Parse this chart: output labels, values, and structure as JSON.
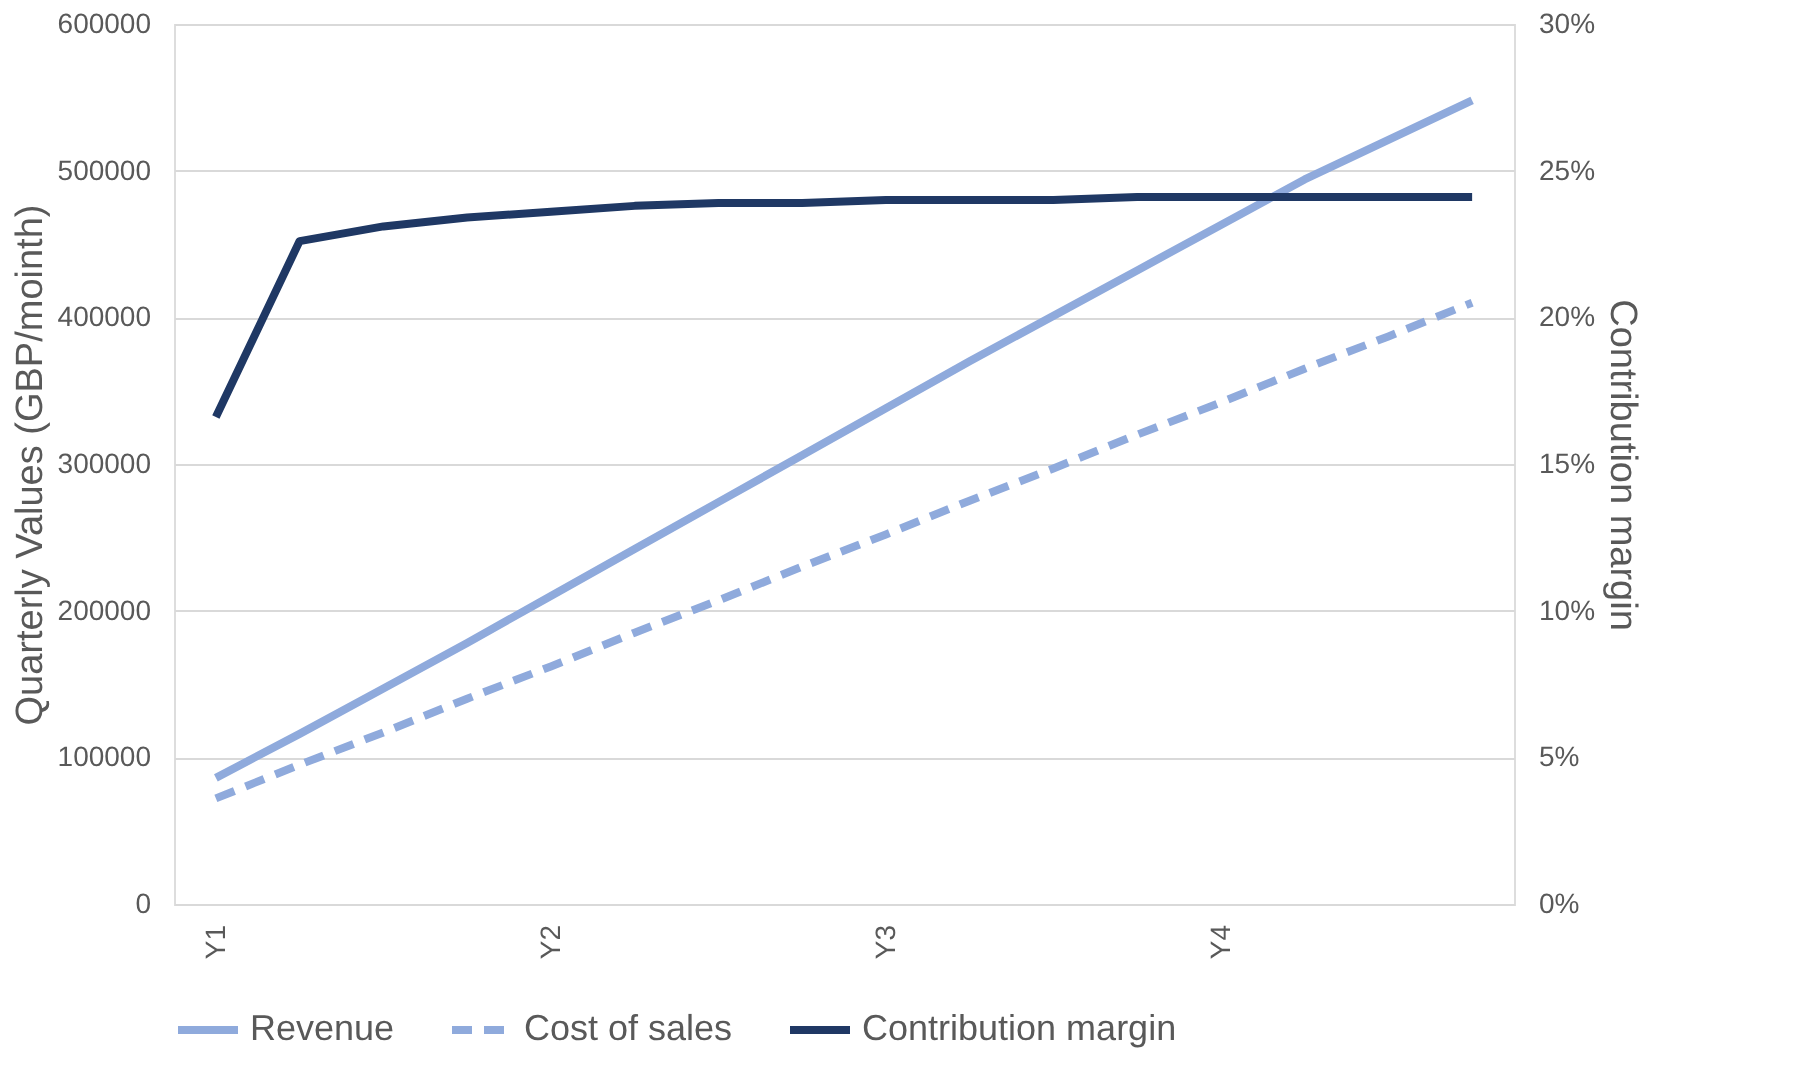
{
  "chart_data": {
    "type": "line",
    "categories": [
      "Y1",
      null,
      null,
      null,
      "Y2",
      null,
      null,
      null,
      "Y3",
      null,
      null,
      null,
      "Y4",
      null,
      null,
      null
    ],
    "series": [
      {
        "name": "Revenue",
        "color": "#8faadc",
        "line_style": "solid",
        "values": [
          86000,
          116000,
          147000,
          178000,
          210000,
          242000,
          274000,
          306000,
          338000,
          370000,
          401000,
          432000,
          463000,
          494000,
          521000,
          548000
        ]
      },
      {
        "name": "Cost of sales",
        "color": "#8faadc",
        "line_style": "dashed",
        "values": [
          72000,
          95000,
          117000,
          140000,
          162000,
          185000,
          207000,
          230000,
          252000,
          275000,
          297000,
          320000,
          342000,
          365000,
          387000,
          410000
        ]
      },
      {
        "name": "Contribution margin",
        "color": "#1f3864",
        "line_style": "solid",
        "axis": "y2",
        "values": [
          16.6,
          22.6,
          23.1,
          23.4,
          23.6,
          23.8,
          23.9,
          23.9,
          24.0,
          24.0,
          24.0,
          24.1,
          24.1,
          24.1,
          24.1,
          24.1
        ]
      }
    ],
    "ylabel": "Quarterly Values (GBP/mointh)",
    "y2label": "Contribution margin",
    "ylim": [
      0,
      600000
    ],
    "yticks": [
      0,
      100000,
      200000,
      300000,
      400000,
      500000,
      600000
    ],
    "y2lim": [
      0,
      30
    ],
    "y2ticks": [
      {
        "value": 0,
        "label": "0%"
      },
      {
        "value": 5,
        "label": "5%"
      },
      {
        "value": 10,
        "label": "10%"
      },
      {
        "value": 15,
        "label": "15%"
      },
      {
        "value": 20,
        "label": "20%"
      },
      {
        "value": 25,
        "label": "25%"
      },
      {
        "value": 30,
        "label": "30%"
      }
    ],
    "grid": "y",
    "legend": "bottom"
  }
}
